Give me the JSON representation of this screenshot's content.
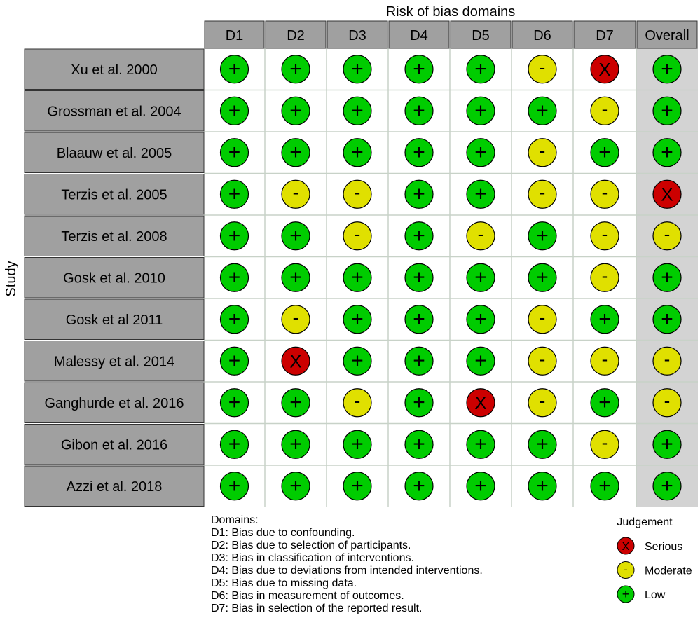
{
  "chart_data": {
    "type": "table",
    "title": "Risk of bias domains",
    "ylabel": "Study",
    "columns": [
      "D1",
      "D2",
      "D3",
      "D4",
      "D5",
      "D6",
      "D7",
      "Overall"
    ],
    "studies": [
      "Xu et al. 2000",
      "Grossman et al. 2004",
      "Blaauw et al. 2005",
      "Terzis et al. 2005",
      "Terzis et al. 2008",
      "Gosk et al. 2010",
      "Gosk et al 2011",
      "Malessy et al. 2014",
      "Ganghurde et al. 2016",
      "Gibon et al. 2016",
      "Azzi et al. 2018"
    ],
    "judgements": [
      [
        "+",
        "+",
        "+",
        "+",
        "+",
        "-",
        "X",
        "+"
      ],
      [
        "+",
        "+",
        "+",
        "+",
        "+",
        "+",
        "-",
        "+"
      ],
      [
        "+",
        "+",
        "+",
        "+",
        "+",
        "-",
        "+",
        "+"
      ],
      [
        "+",
        "-",
        "-",
        "+",
        "+",
        "-",
        "-",
        "X"
      ],
      [
        "+",
        "+",
        "-",
        "+",
        "-",
        "+",
        "-",
        "-"
      ],
      [
        "+",
        "+",
        "+",
        "+",
        "+",
        "+",
        "-",
        "+"
      ],
      [
        "+",
        "-",
        "+",
        "+",
        "+",
        "-",
        "+",
        "+"
      ],
      [
        "+",
        "X",
        "+",
        "+",
        "+",
        "-",
        "-",
        "-"
      ],
      [
        "+",
        "+",
        "-",
        "+",
        "X",
        "-",
        "+",
        "-"
      ],
      [
        "+",
        "+",
        "+",
        "+",
        "+",
        "+",
        "-",
        "+"
      ],
      [
        "+",
        "+",
        "+",
        "+",
        "+",
        "+",
        "+",
        "+"
      ]
    ],
    "colors": {
      "low": "#00cc00",
      "moderate": "#e0e000",
      "serious": "#cc0000",
      "header_bg": "#a0a0a0",
      "overall_bg": "#d3d3d3",
      "grid": "#c8d2c8"
    },
    "domains_title": "Domains:",
    "domains": [
      "D1: Bias due to confounding.",
      "D2: Bias due to selection of participants.",
      "D3: Bias in classification of interventions.",
      "D4: Bias due to deviations from intended interventions.",
      "D5: Bias due to missing data.",
      "D6: Bias in measurement of outcomes.",
      "D7: Bias in selection of the reported result."
    ],
    "judgement_legend": {
      "title": "Judgement",
      "items": [
        {
          "symbol": "X",
          "label": "Serious",
          "level": "serious"
        },
        {
          "symbol": "-",
          "label": "Moderate",
          "level": "moderate"
        },
        {
          "symbol": "+",
          "label": "Low",
          "level": "low"
        }
      ]
    }
  }
}
